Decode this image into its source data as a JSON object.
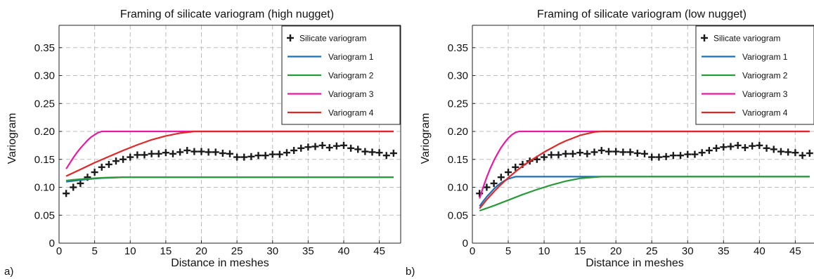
{
  "colors": {
    "marker": "#1a1a1a",
    "variogram_1": "#1f6fb5",
    "variogram_2": "#2a9a3a",
    "variogram_3": "#e81aa0",
    "variogram_4": "#e02828",
    "grid": "#bdbdbd"
  },
  "chart_data": [
    {
      "type": "line",
      "panel_label": "a)",
      "title": "Framing of silicate variogram (high nugget)",
      "xlabel": "Distance in meshes",
      "ylabel": "Variogram",
      "xlim": [
        0,
        48
      ],
      "ylim": [
        0,
        0.39
      ],
      "xticks": [
        "0",
        "5",
        "10",
        "15",
        "20",
        "25",
        "30",
        "35",
        "40",
        "45"
      ],
      "yticks": [
        "0",
        "0.05",
        "0.10",
        "0.15",
        "0.20",
        "0.25",
        "0.30",
        "0.35"
      ],
      "grid": true,
      "legend_position": "top-right",
      "series": [
        {
          "name": "Silicate variogram",
          "style": "markers",
          "x": [
            1,
            2,
            3,
            4,
            5,
            6,
            7,
            8,
            9,
            10,
            11,
            12,
            13,
            14,
            15,
            16,
            17,
            18,
            19,
            20,
            21,
            22,
            23,
            24,
            25,
            26,
            27,
            28,
            29,
            30,
            31,
            32,
            33,
            34,
            35,
            36,
            37,
            38,
            39,
            40,
            41,
            42,
            43,
            44,
            45,
            46,
            47
          ],
          "y": [
            0.089,
            0.1,
            0.107,
            0.118,
            0.127,
            0.136,
            0.141,
            0.147,
            0.15,
            0.154,
            0.158,
            0.158,
            0.16,
            0.16,
            0.162,
            0.16,
            0.163,
            0.166,
            0.164,
            0.164,
            0.163,
            0.163,
            0.161,
            0.16,
            0.154,
            0.154,
            0.155,
            0.157,
            0.157,
            0.159,
            0.159,
            0.162,
            0.166,
            0.17,
            0.172,
            0.173,
            0.175,
            0.171,
            0.174,
            0.175,
            0.17,
            0.168,
            0.164,
            0.163,
            0.162,
            0.157,
            0.161
          ]
        },
        {
          "name": "Variogram 1",
          "style": "line",
          "x": [
            1,
            2,
            3,
            4,
            5,
            6,
            7,
            8,
            9,
            10,
            11,
            12,
            13,
            15,
            20,
            25,
            30,
            35,
            40,
            45,
            47
          ],
          "y": [
            0.11,
            0.1115,
            0.113,
            0.1145,
            0.1155,
            0.1165,
            0.117,
            0.1175,
            0.118,
            0.118,
            0.118,
            0.118,
            0.118,
            0.118,
            0.118,
            0.118,
            0.118,
            0.118,
            0.118,
            0.118,
            0.118
          ]
        },
        {
          "name": "Variogram 2",
          "style": "line",
          "x": [
            1,
            2,
            3,
            4,
            5,
            6,
            7,
            8,
            9,
            10,
            11,
            12,
            13,
            15,
            20,
            25,
            30,
            35,
            40,
            45,
            47
          ],
          "y": [
            0.112,
            0.1135,
            0.1145,
            0.1155,
            0.1163,
            0.117,
            0.1175,
            0.1178,
            0.118,
            0.118,
            0.118,
            0.118,
            0.118,
            0.118,
            0.118,
            0.118,
            0.118,
            0.118,
            0.118,
            0.118,
            0.118
          ]
        },
        {
          "name": "Variogram 3",
          "style": "line",
          "x": [
            1,
            1.5,
            2,
            2.5,
            3,
            3.5,
            4,
            4.5,
            5,
            5.5,
            6,
            6.5,
            7,
            10,
            15,
            20,
            25,
            30,
            35,
            40,
            45,
            47
          ],
          "y": [
            0.133,
            0.143,
            0.153,
            0.162,
            0.17,
            0.177,
            0.184,
            0.19,
            0.194,
            0.198,
            0.2,
            0.2,
            0.2,
            0.2,
            0.2,
            0.2,
            0.2,
            0.2,
            0.2,
            0.2,
            0.2,
            0.2
          ]
        },
        {
          "name": "Variogram 4",
          "style": "line",
          "x": [
            1,
            3,
            5,
            7,
            9,
            11,
            13,
            15,
            17,
            19,
            20,
            25,
            30,
            35,
            40,
            45,
            47
          ],
          "y": [
            0.12,
            0.132,
            0.144,
            0.155,
            0.166,
            0.176,
            0.185,
            0.192,
            0.197,
            0.2,
            0.2,
            0.2,
            0.2,
            0.2,
            0.2,
            0.2,
            0.2
          ]
        }
      ]
    },
    {
      "type": "line",
      "panel_label": "b)",
      "title": "Framing of silicate variogram (low nugget)",
      "xlabel": "Distance in meshes",
      "ylabel": "Variogram",
      "xlim": [
        0,
        48
      ],
      "ylim": [
        0,
        0.39
      ],
      "xticks": [
        "0",
        "5",
        "10",
        "15",
        "20",
        "25",
        "30",
        "35",
        "40",
        "45"
      ],
      "yticks": [
        "0",
        "0.05",
        "0.10",
        "0.15",
        "0.20",
        "0.25",
        "0.30",
        "0.35"
      ],
      "grid": true,
      "legend_position": "top-right",
      "series": [
        {
          "name": "Silicate variogram",
          "style": "markers",
          "x": [
            1,
            2,
            3,
            4,
            5,
            6,
            7,
            8,
            9,
            10,
            11,
            12,
            13,
            14,
            15,
            16,
            17,
            18,
            19,
            20,
            21,
            22,
            23,
            24,
            25,
            26,
            27,
            28,
            29,
            30,
            31,
            32,
            33,
            34,
            35,
            36,
            37,
            38,
            39,
            40,
            41,
            42,
            43,
            44,
            45,
            46,
            47
          ],
          "y": [
            0.089,
            0.1,
            0.107,
            0.118,
            0.127,
            0.136,
            0.141,
            0.147,
            0.15,
            0.154,
            0.158,
            0.158,
            0.16,
            0.16,
            0.162,
            0.16,
            0.163,
            0.166,
            0.164,
            0.164,
            0.163,
            0.163,
            0.161,
            0.16,
            0.154,
            0.154,
            0.155,
            0.157,
            0.157,
            0.159,
            0.159,
            0.162,
            0.166,
            0.17,
            0.172,
            0.173,
            0.175,
            0.171,
            0.174,
            0.175,
            0.17,
            0.168,
            0.164,
            0.163,
            0.162,
            0.157,
            0.161
          ]
        },
        {
          "name": "Variogram 1",
          "style": "line",
          "x": [
            1,
            1.5,
            2,
            2.5,
            3,
            3.5,
            4,
            4.5,
            5,
            5.5,
            6,
            7,
            10,
            15,
            20,
            25,
            30,
            35,
            40,
            45,
            47
          ],
          "y": [
            0.066,
            0.075,
            0.083,
            0.09,
            0.097,
            0.103,
            0.108,
            0.112,
            0.115,
            0.117,
            0.119,
            0.119,
            0.119,
            0.119,
            0.119,
            0.119,
            0.119,
            0.119,
            0.119,
            0.119,
            0.119
          ]
        },
        {
          "name": "Variogram 2",
          "style": "line",
          "x": [
            1,
            3,
            5,
            7,
            9,
            11,
            13,
            15,
            17,
            18,
            20,
            25,
            30,
            35,
            40,
            45,
            47
          ],
          "y": [
            0.058,
            0.067,
            0.077,
            0.087,
            0.096,
            0.104,
            0.111,
            0.116,
            0.118,
            0.119,
            0.119,
            0.119,
            0.119,
            0.119,
            0.119,
            0.119,
            0.119
          ]
        },
        {
          "name": "Variogram 3",
          "style": "line",
          "x": [
            1,
            1.5,
            2,
            2.5,
            3,
            3.5,
            4,
            4.5,
            5,
            5.5,
            6,
            6.5,
            7,
            10,
            15,
            20,
            25,
            30,
            35,
            40,
            45,
            47
          ],
          "y": [
            0.08,
            0.1,
            0.118,
            0.134,
            0.148,
            0.16,
            0.171,
            0.18,
            0.188,
            0.194,
            0.198,
            0.2,
            0.2,
            0.2,
            0.2,
            0.2,
            0.2,
            0.2,
            0.2,
            0.2,
            0.2,
            0.2
          ]
        },
        {
          "name": "Variogram 4",
          "style": "line",
          "x": [
            1,
            2,
            3,
            4,
            5,
            6,
            7,
            8,
            9,
            10,
            11,
            12,
            13,
            14,
            15,
            16,
            17,
            18,
            20,
            25,
            30,
            35,
            40,
            45,
            47
          ],
          "y": [
            0.062,
            0.078,
            0.092,
            0.105,
            0.117,
            0.128,
            0.138,
            0.147,
            0.155,
            0.163,
            0.17,
            0.177,
            0.183,
            0.188,
            0.193,
            0.196,
            0.199,
            0.2,
            0.2,
            0.2,
            0.2,
            0.2,
            0.2,
            0.2,
            0.2
          ]
        }
      ]
    }
  ]
}
